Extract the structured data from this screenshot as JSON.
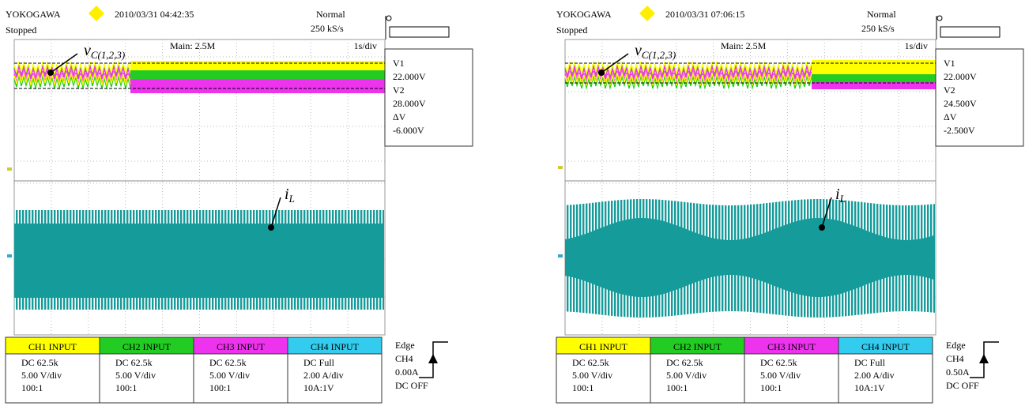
{
  "panels": [
    {
      "brand": "YOKOGAWA",
      "timestamp": "2010/03/31 04:42:35",
      "status": "Stopped",
      "mode": "Normal",
      "sample_rate": "250 kS/s",
      "main": "Main: 2.5M",
      "time_div": "1s/div",
      "cursor_readout": [
        "V1",
        "22.000V",
        "V2",
        "28.000V",
        "ΔV",
        "-6.000V"
      ],
      "upper_label": {
        "main": "v",
        "sub": "C(1,2,3)"
      },
      "lower_label": {
        "main": "i",
        "sub": "L"
      },
      "channels": [
        {
          "name": "CH1 INPUT",
          "color": "#ffff00",
          "lines": [
            "DC 62.5k",
            "5.00 V/div",
            "100:1"
          ]
        },
        {
          "name": "CH2 INPUT",
          "color": "#22cc22",
          "lines": [
            "DC 62.5k",
            "5.00 V/div",
            "100:1"
          ]
        },
        {
          "name": "CH3 INPUT",
          "color": "#ee33ee",
          "lines": [
            "DC 62.5k",
            "5.00 V/div",
            "100:1"
          ]
        },
        {
          "name": "CH4 INPUT",
          "color": "#33ccee",
          "lines": [
            "DC Full",
            "2.00 A/div",
            "10A:1V"
          ]
        }
      ],
      "trigger": [
        "Edge",
        "CH4",
        "0.00A",
        "DC OFF"
      ]
    },
    {
      "brand": "YOKOGAWA",
      "timestamp": "2010/03/31 07:06:15",
      "status": "Stopped",
      "mode": "Normal",
      "sample_rate": "250 kS/s",
      "main": "Main: 2.5M",
      "time_div": "1s/div",
      "cursor_readout": [
        "V1",
        "22.000V",
        "V2",
        "24.500V",
        "ΔV",
        "-2.500V"
      ],
      "upper_label": {
        "main": "v",
        "sub": "C(1,2,3)"
      },
      "lower_label": {
        "main": "i",
        "sub": "L"
      },
      "channels": [
        {
          "name": "CH1 INPUT",
          "color": "#ffff00",
          "lines": [
            "DC 62.5k",
            "5.00 V/div",
            "100:1"
          ]
        },
        {
          "name": "CH2 INPUT",
          "color": "#22cc22",
          "lines": [
            "DC 62.5k",
            "5.00 V/div",
            "100:1"
          ]
        },
        {
          "name": "CH3 INPUT",
          "color": "#ee33ee",
          "lines": [
            "DC 62.5k",
            "5.00 V/div",
            "100:1"
          ]
        },
        {
          "name": "CH4 INPUT",
          "color": "#33ccee",
          "lines": [
            "DC Full",
            "2.00 A/div",
            "10A:1V"
          ]
        }
      ],
      "trigger": [
        "Edge",
        "CH4",
        "0.50A",
        "DC OFF"
      ]
    }
  ]
}
